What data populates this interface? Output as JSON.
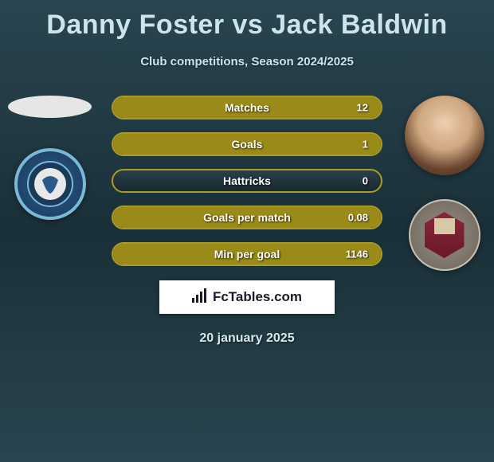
{
  "header": {
    "title": "Danny Foster vs Jack Baldwin",
    "subtitle": "Club competitions, Season 2024/2025"
  },
  "colors": {
    "accent": "#9a8a18",
    "accent_border": "#aa9a28",
    "text_light": "#cce5ea",
    "white": "#ffffff"
  },
  "players": {
    "left": {
      "name": "Danny Foster",
      "club": "Wycombe Wanderers"
    },
    "right": {
      "name": "Jack Baldwin",
      "club": "Northampton"
    }
  },
  "stats": [
    {
      "label": "Matches",
      "left_value": "",
      "right_value": "12",
      "left_fill_pct": 0,
      "right_fill_pct": 100
    },
    {
      "label": "Goals",
      "left_value": "",
      "right_value": "1",
      "left_fill_pct": 0,
      "right_fill_pct": 100
    },
    {
      "label": "Hattricks",
      "left_value": "",
      "right_value": "0",
      "left_fill_pct": 0,
      "right_fill_pct": 0
    },
    {
      "label": "Goals per match",
      "left_value": "",
      "right_value": "0.08",
      "left_fill_pct": 0,
      "right_fill_pct": 100
    },
    {
      "label": "Min per goal",
      "left_value": "",
      "right_value": "1146",
      "left_fill_pct": 0,
      "right_fill_pct": 100
    }
  ],
  "footer": {
    "logo_text": "FcTables.com",
    "date": "20 january 2025"
  },
  "style": {
    "pill_height": 30,
    "pill_gap": 16,
    "title_fontsize": 34,
    "subtitle_fontsize": 15,
    "stat_label_fontsize": 14,
    "stat_value_fontsize": 13,
    "date_fontsize": 16,
    "border_radius": 16
  }
}
